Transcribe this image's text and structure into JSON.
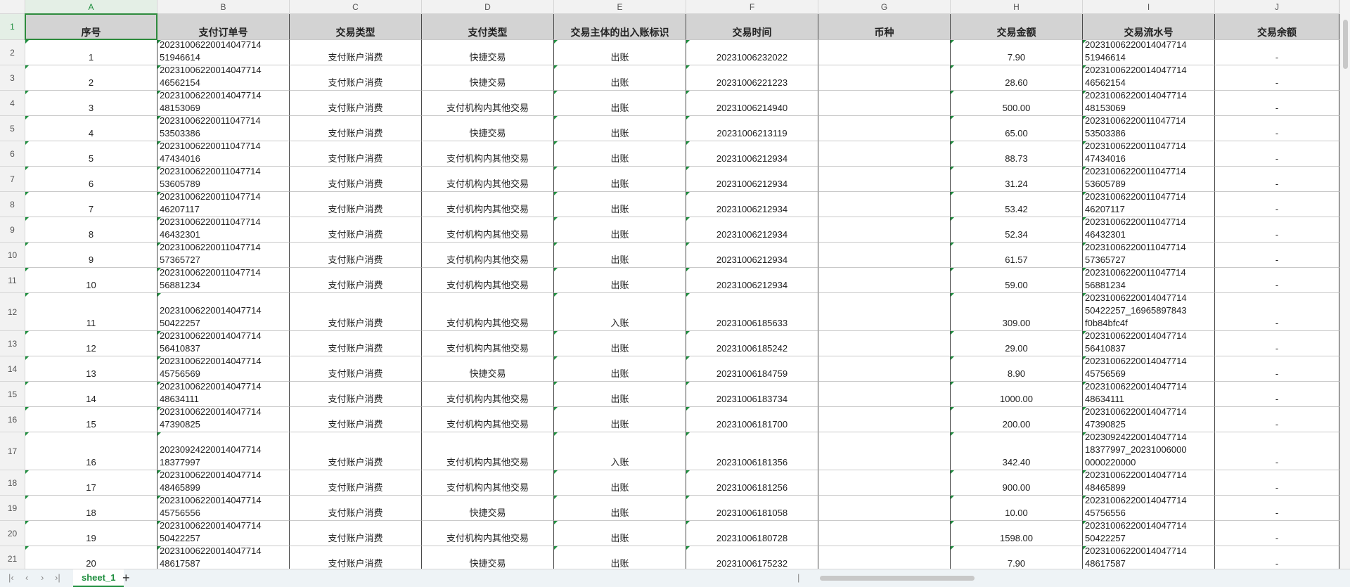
{
  "columns": [
    "A",
    "B",
    "C",
    "D",
    "E",
    "F",
    "G",
    "H",
    "I",
    "J"
  ],
  "row_numbers": [
    1,
    2,
    3,
    4,
    5,
    6,
    7,
    8,
    9,
    10,
    11,
    12,
    13,
    14,
    15,
    16,
    17,
    18,
    19,
    20,
    21
  ],
  "header": {
    "no": "序号",
    "order_id": "支付订单号",
    "trade_type": "交易类型",
    "pay_type": "支付类型",
    "direction": "交易主体的出入账标识",
    "time": "交易时间",
    "currency": "币种",
    "amount": "交易金额",
    "serial": "交易流水号",
    "balance": "交易余额"
  },
  "rows": [
    {
      "no": "1",
      "order_id": "2023100622001404771451946614",
      "trade_type": "支付账户消费",
      "pay_type": "快捷交易",
      "direction": "出账",
      "time": "20231006232022",
      "amount": "7.90",
      "serial": "2023100622001404771451946614",
      "balance": "-"
    },
    {
      "no": "2",
      "order_id": "2023100622001404771446562154",
      "trade_type": "支付账户消费",
      "pay_type": "快捷交易",
      "direction": "出账",
      "time": "20231006221223",
      "amount": "28.60",
      "serial": "2023100622001404771446562154",
      "balance": "-"
    },
    {
      "no": "3",
      "order_id": "2023100622001404771448153069",
      "trade_type": "支付账户消费",
      "pay_type": "支付机构内其他交易",
      "direction": "出账",
      "time": "20231006214940",
      "amount": "500.00",
      "serial": "2023100622001404771448153069",
      "balance": "-"
    },
    {
      "no": "4",
      "order_id": "2023100622001104771453503386",
      "trade_type": "支付账户消费",
      "pay_type": "快捷交易",
      "direction": "出账",
      "time": "20231006213119",
      "amount": "65.00",
      "serial": "2023100622001104771453503386",
      "balance": "-"
    },
    {
      "no": "5",
      "order_id": "2023100622001104771447434016",
      "trade_type": "支付账户消费",
      "pay_type": "支付机构内其他交易",
      "direction": "出账",
      "time": "20231006212934",
      "amount": "88.73",
      "serial": "2023100622001104771447434016",
      "balance": "-"
    },
    {
      "no": "6",
      "order_id": "2023100622001104771453605789",
      "trade_type": "支付账户消费",
      "pay_type": "支付机构内其他交易",
      "direction": "出账",
      "time": "20231006212934",
      "amount": "31.24",
      "serial": "2023100622001104771453605789",
      "balance": "-"
    },
    {
      "no": "7",
      "order_id": "2023100622001104771446207117",
      "trade_type": "支付账户消费",
      "pay_type": "支付机构内其他交易",
      "direction": "出账",
      "time": "20231006212934",
      "amount": "53.42",
      "serial": "2023100622001104771446207117",
      "balance": "-"
    },
    {
      "no": "8",
      "order_id": "2023100622001104771446432301",
      "trade_type": "支付账户消费",
      "pay_type": "支付机构内其他交易",
      "direction": "出账",
      "time": "20231006212934",
      "amount": "52.34",
      "serial": "2023100622001104771446432301",
      "balance": "-"
    },
    {
      "no": "9",
      "order_id": "2023100622001104771457365727",
      "trade_type": "支付账户消费",
      "pay_type": "支付机构内其他交易",
      "direction": "出账",
      "time": "20231006212934",
      "amount": "61.57",
      "serial": "2023100622001104771457365727",
      "balance": "-"
    },
    {
      "no": "10",
      "order_id": "2023100622001104771456881234",
      "trade_type": "支付账户消费",
      "pay_type": "支付机构内其他交易",
      "direction": "出账",
      "time": "20231006212934",
      "amount": "59.00",
      "serial": "2023100622001104771456881234",
      "balance": "-"
    },
    {
      "no": "11",
      "order_id": "2023100622001404771450422257",
      "trade_type": "支付账户消费",
      "pay_type": "支付机构内其他交易",
      "direction": "入账",
      "time": "20231006185633",
      "amount": "309.00",
      "serial": "2023100622001404771450422257_16965897843f0b84bfc4f",
      "balance": "-"
    },
    {
      "no": "12",
      "order_id": "2023100622001404771456410837",
      "trade_type": "支付账户消费",
      "pay_type": "支付机构内其他交易",
      "direction": "出账",
      "time": "20231006185242",
      "amount": "29.00",
      "serial": "2023100622001404771456410837",
      "balance": "-"
    },
    {
      "no": "13",
      "order_id": "2023100622001404771445756569",
      "trade_type": "支付账户消费",
      "pay_type": "快捷交易",
      "direction": "出账",
      "time": "20231006184759",
      "amount": "8.90",
      "serial": "2023100622001404771445756569",
      "balance": "-"
    },
    {
      "no": "14",
      "order_id": "2023100622001404771448634111",
      "trade_type": "支付账户消费",
      "pay_type": "支付机构内其他交易",
      "direction": "出账",
      "time": "20231006183734",
      "amount": "1000.00",
      "serial": "2023100622001404771448634111",
      "balance": "-"
    },
    {
      "no": "15",
      "order_id": "2023100622001404771447390825",
      "trade_type": "支付账户消费",
      "pay_type": "支付机构内其他交易",
      "direction": "出账",
      "time": "20231006181700",
      "amount": "200.00",
      "serial": "2023100622001404771447390825",
      "balance": "-"
    },
    {
      "no": "16",
      "order_id": "2023092422001404771418377997",
      "trade_type": "支付账户消费",
      "pay_type": "支付机构内其他交易",
      "direction": "入账",
      "time": "20231006181356",
      "amount": "342.40",
      "serial": "2023092422001404771418377997_202310060000000220000",
      "balance": "-"
    },
    {
      "no": "17",
      "order_id": "2023100622001404771448465899",
      "trade_type": "支付账户消费",
      "pay_type": "支付机构内其他交易",
      "direction": "出账",
      "time": "20231006181256",
      "amount": "900.00",
      "serial": "2023100622001404771448465899",
      "balance": "-"
    },
    {
      "no": "18",
      "order_id": "2023100622001404771445756556",
      "trade_type": "支付账户消费",
      "pay_type": "快捷交易",
      "direction": "出账",
      "time": "20231006181058",
      "amount": "10.00",
      "serial": "2023100622001404771445756556",
      "balance": "-"
    },
    {
      "no": "19",
      "order_id": "2023100622001404771450422257",
      "trade_type": "支付账户消费",
      "pay_type": "支付机构内其他交易",
      "direction": "出账",
      "time": "20231006180728",
      "amount": "1598.00",
      "serial": "2023100622001404771450422257",
      "balance": "-"
    },
    {
      "no": "20",
      "order_id": "2023100622001404771448617587",
      "trade_type": "支付账户消费",
      "pay_type": "快捷交易",
      "direction": "出账",
      "time": "20231006175232",
      "amount": "7.90",
      "serial": "2023100622001404771448617587",
      "balance": "-"
    }
  ],
  "sheet_tab": "sheet_1"
}
